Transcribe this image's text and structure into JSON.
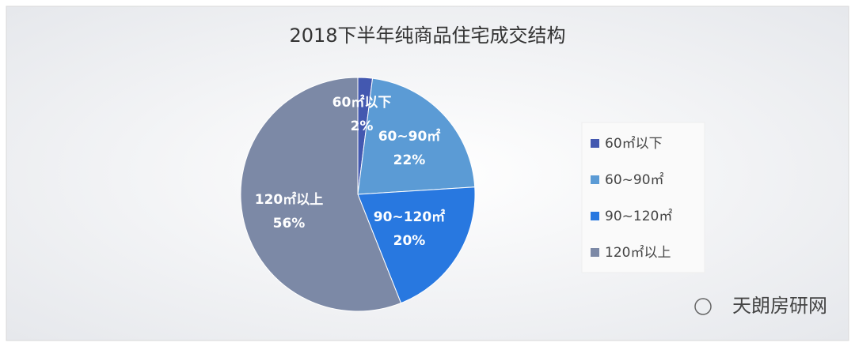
{
  "chart_data": {
    "type": "pie",
    "title": "2018下半年纯商品住宅成交结构",
    "categories": [
      "60㎡以下",
      "60~90㎡",
      "90~120㎡",
      "120㎡以上"
    ],
    "values": [
      2,
      22,
      20,
      56
    ],
    "value_labels": [
      "2%",
      "22%",
      "20%",
      "56%"
    ],
    "colors": [
      "#4358b0",
      "#5b9bd5",
      "#2878e0",
      "#7c89a6"
    ],
    "legend": "right"
  },
  "watermark": "天朗房研网"
}
